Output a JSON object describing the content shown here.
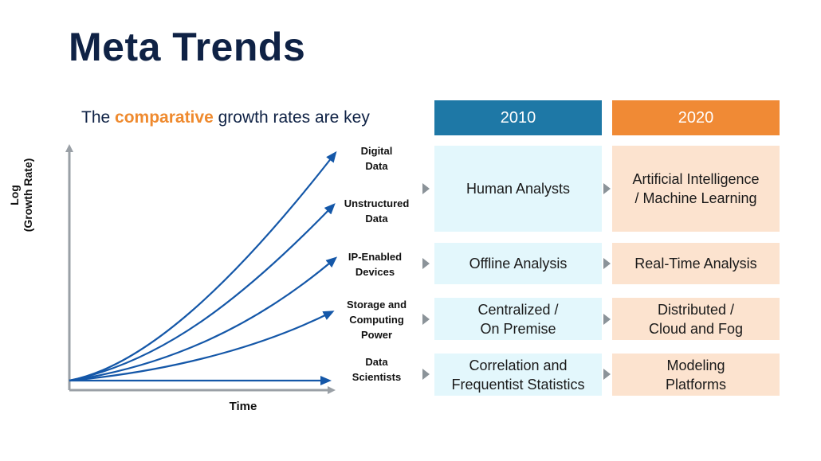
{
  "title": "Meta Trends",
  "subtitle": {
    "before": "The ",
    "highlight": "comparative",
    "after": " growth rates are key"
  },
  "colors": {
    "navy": "#0f2245",
    "accent_orange": "#ef8a2e",
    "header_2010": "#1e78a6",
    "header_2020": "#f08a35",
    "arrow_blue": "#1457a8"
  },
  "chart": {
    "y_axis_label_line1": "Log",
    "y_axis_label_line2": "(Growth Rate)",
    "x_axis_label": "Time",
    "curves": [
      {
        "line1": "Digital",
        "line2": "Data"
      },
      {
        "line1": "Unstructured",
        "line2": "Data"
      },
      {
        "line1": "IP-Enabled",
        "line2": "Devices"
      },
      {
        "line1": "Storage and",
        "line2": "Computing",
        "line3": "Power"
      },
      {
        "line1": "Data",
        "line2": "Scientists"
      }
    ]
  },
  "table": {
    "headers": {
      "y2010": "2010",
      "y2020": "2020"
    },
    "rows": [
      {
        "y2010": {
          "line1": "Human Analysts"
        },
        "y2020": {
          "line1": "Artificial Intelligence",
          "line2": "/ Machine Learning"
        }
      },
      {
        "y2010": {
          "line1": "Offline Analysis"
        },
        "y2020": {
          "line1": "Real-Time Analysis"
        }
      },
      {
        "y2010": {
          "line1": "Centralized /",
          "line2": "On Premise"
        },
        "y2020": {
          "line1": "Distributed /",
          "line2": "Cloud and Fog"
        }
      },
      {
        "y2010": {
          "line1": "Correlation and",
          "line2": "Frequentist Statistics"
        },
        "y2020": {
          "line1": "Modeling",
          "line2": "Platforms"
        }
      }
    ]
  }
}
